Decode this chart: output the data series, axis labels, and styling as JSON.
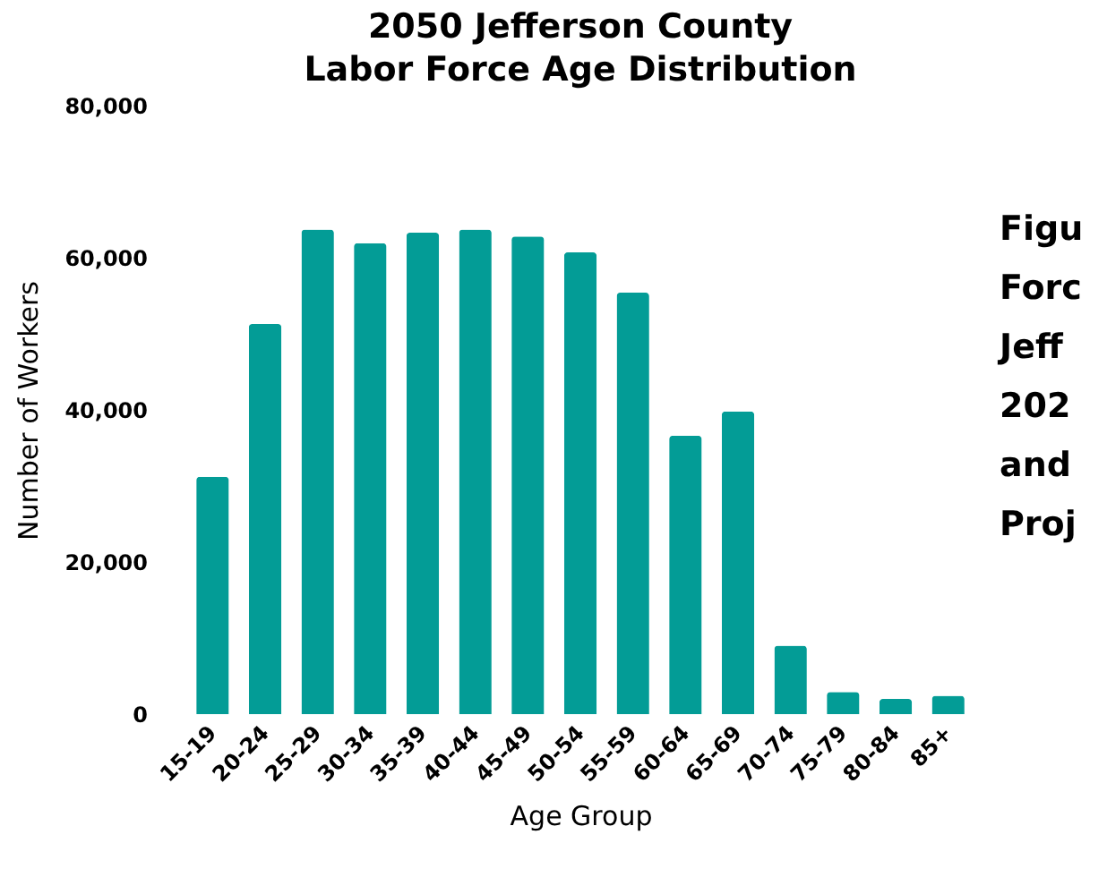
{
  "chart_data": {
    "type": "bar",
    "title": "2050 Jefferson County\nLabor Force Age Distribution",
    "xlabel": "Age Group",
    "ylabel": "Number of Workers",
    "categories": [
      "15-19",
      "20-24",
      "25-29",
      "30-34",
      "35-39",
      "40-44",
      "45-49",
      "50-54",
      "55-59",
      "60-64",
      "65-69",
      "70-74",
      "75-79",
      "80-84",
      "85+"
    ],
    "values": [
      31200,
      51300,
      63700,
      61900,
      63300,
      63700,
      62800,
      60700,
      55400,
      36600,
      39800,
      9000,
      2900,
      2000,
      2400
    ],
    "color": "#039c96",
    "ylim": [
      0,
      80000
    ],
    "yticks": [
      {
        "value": 0,
        "label": "0"
      },
      {
        "value": 20000,
        "label": "20,000"
      },
      {
        "value": 40000,
        "label": "40,000"
      },
      {
        "value": 60000,
        "label": "60,000"
      },
      {
        "value": 80000,
        "label": "80,000"
      }
    ],
    "grid": false,
    "annotations": [
      "Figu\nForc\nJeff\n202\nand\nProj"
    ]
  }
}
